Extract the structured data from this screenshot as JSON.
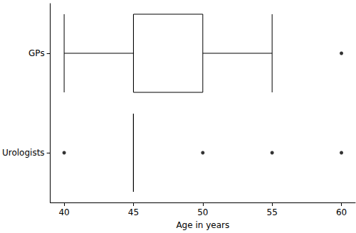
{
  "chart_data": {
    "type": "boxplot",
    "orientation": "horizontal",
    "x_label": "Age in years",
    "categories": [
      "GPs",
      "Urologists"
    ],
    "boxes": [
      [
        40,
        45,
        45,
        50,
        55
      ],
      [
        45,
        45,
        45,
        45,
        45
      ]
    ],
    "outliers": [
      [
        60
      ],
      [
        40,
        50,
        55,
        60
      ]
    ],
    "xlim": [
      39,
      61
    ],
    "xticks": [
      40,
      45,
      50,
      55,
      60
    ],
    "color": "#000000",
    "grid": false
  }
}
